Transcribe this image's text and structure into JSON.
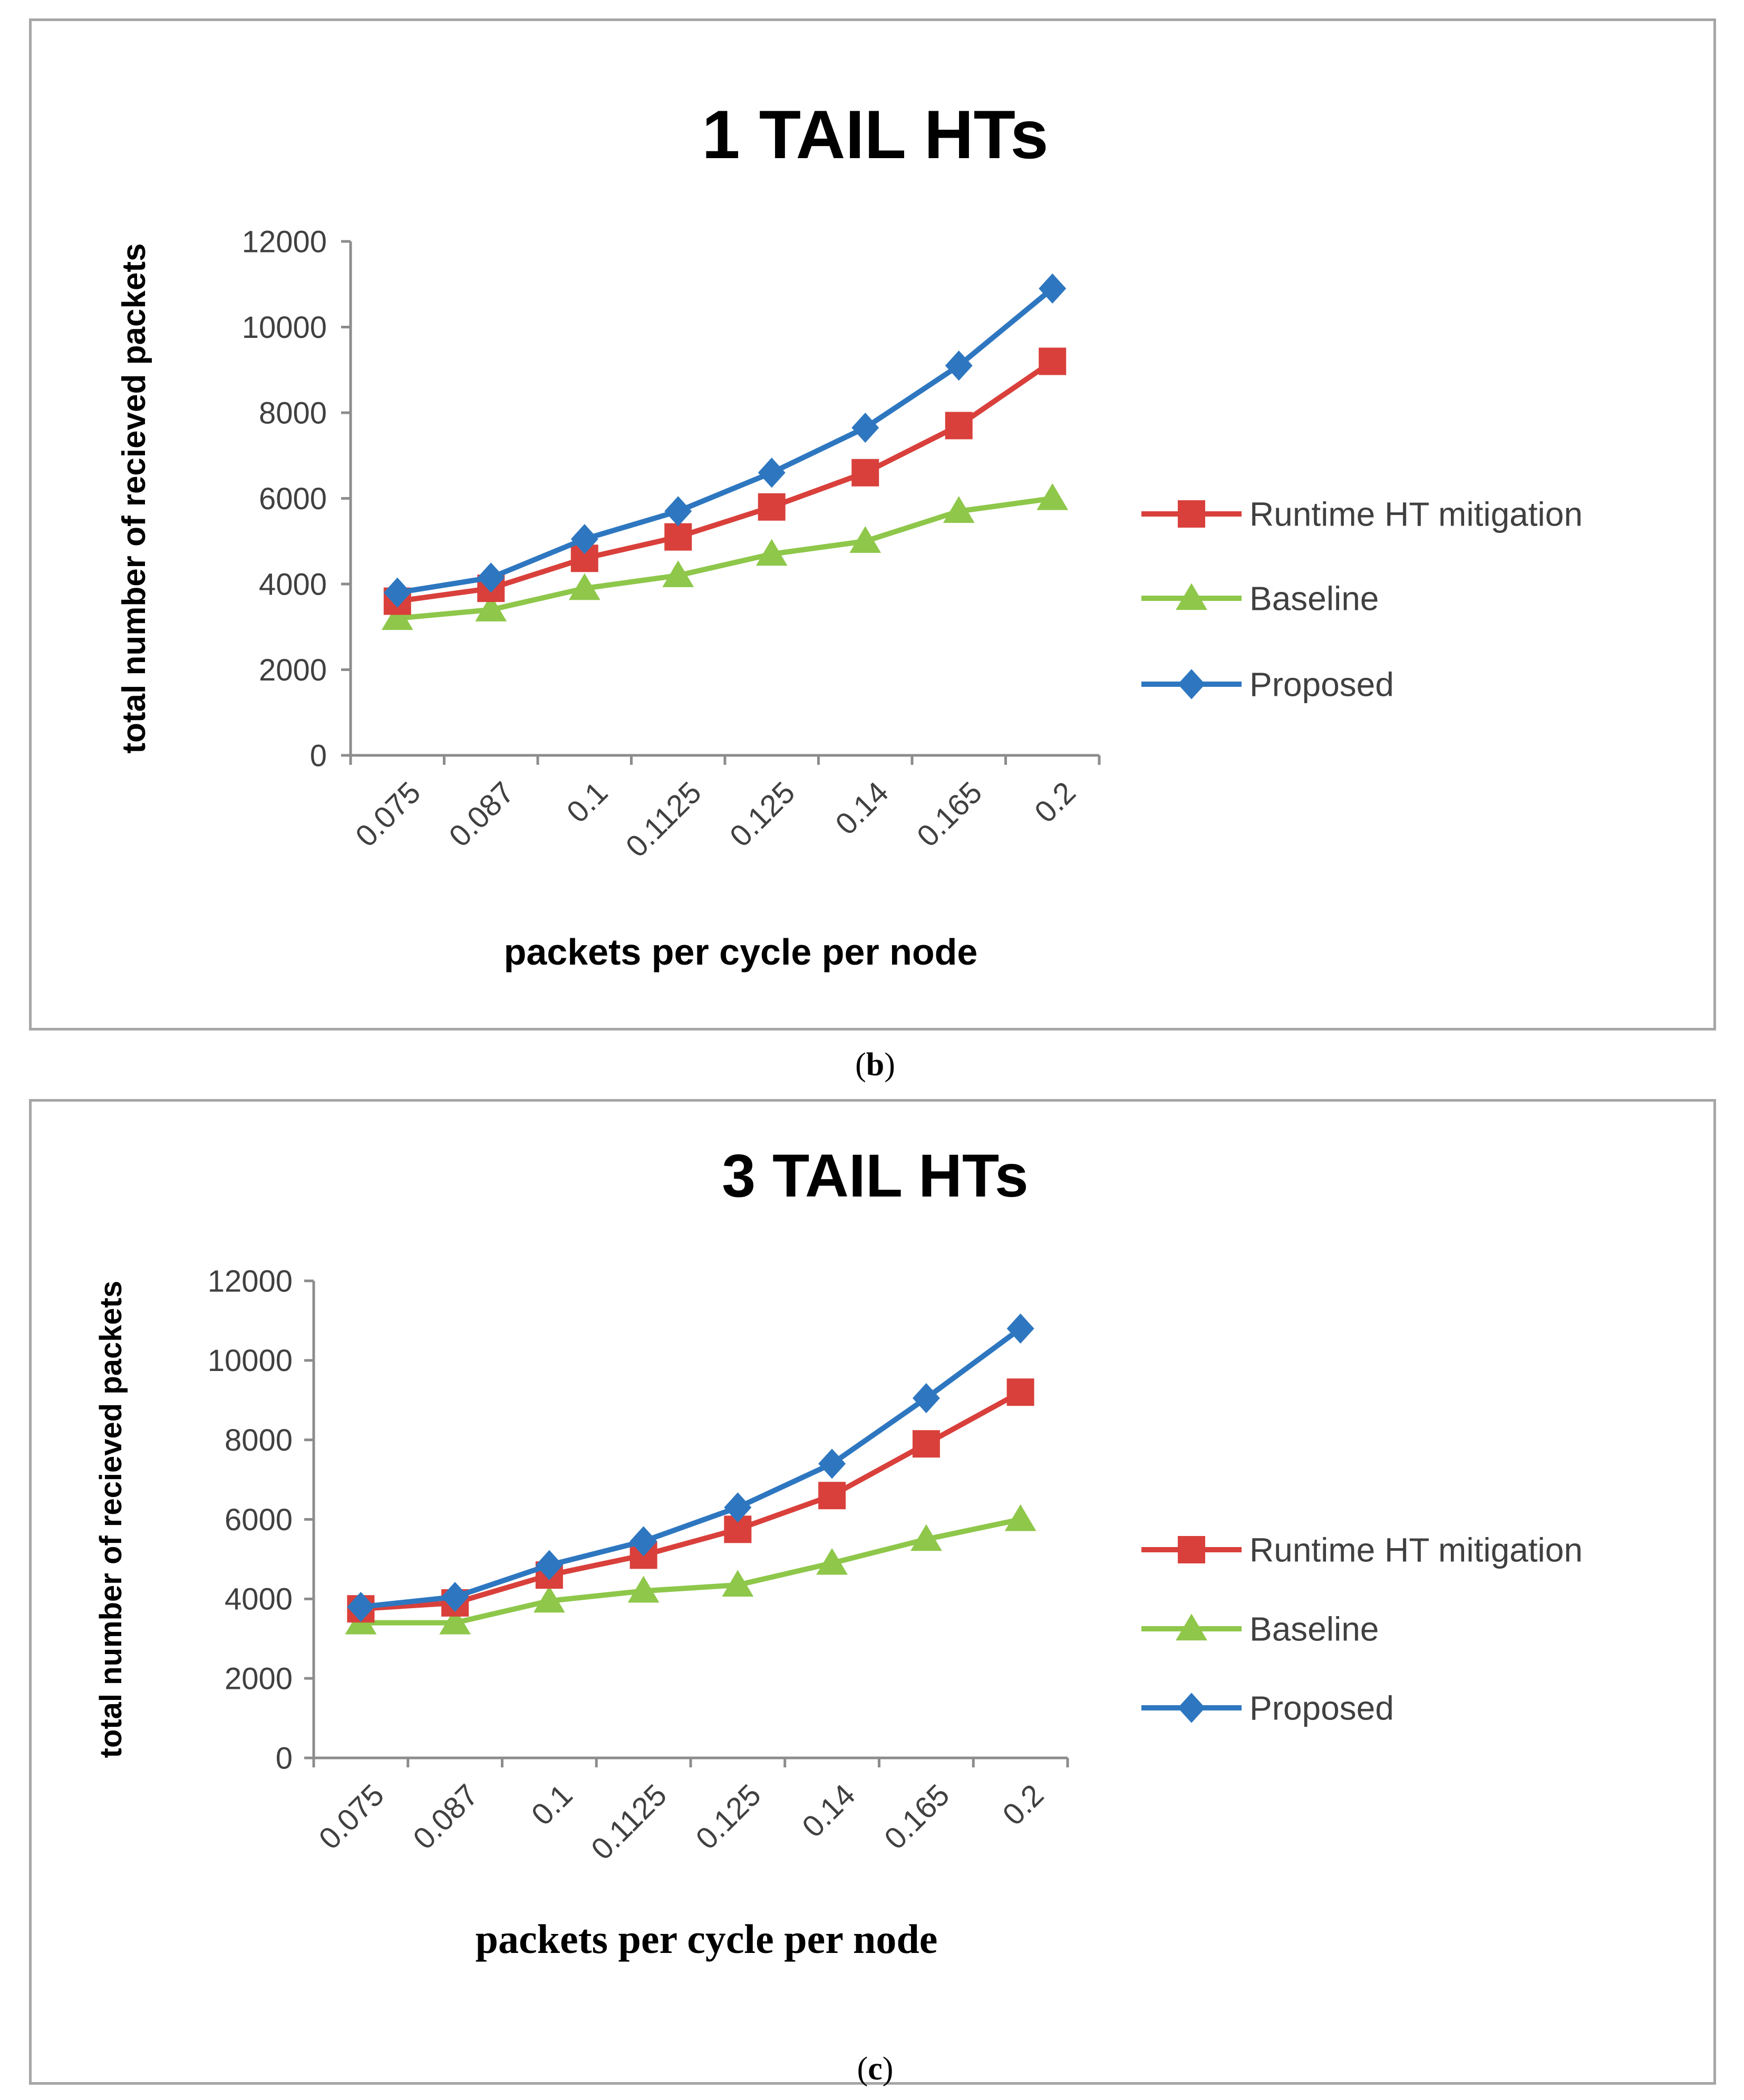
{
  "figures": [
    {
      "caption_letter": "b",
      "chart_data": {
        "type": "line",
        "title": "1 TAIL HTs",
        "xlabel": "packets per cycle per node",
        "ylabel": "total number of recieved packets",
        "categories": [
          "0.075",
          "0.087",
          "0.1",
          "0.1125",
          "0.125",
          "0.14",
          "0.165",
          "0.2"
        ],
        "ylim": [
          0,
          12000
        ],
        "yticks": [
          "0",
          "2000",
          "4000",
          "6000",
          "8000",
          "10000",
          "12000"
        ],
        "legend_position": "right",
        "grid": false,
        "series": [
          {
            "name": "Runtime HT mitigation",
            "marker": "square",
            "color": "#d9403b",
            "values": [
              3600,
              3900,
              4600,
              5100,
              5800,
              6600,
              7700,
              9200
            ]
          },
          {
            "name": "Baseline",
            "marker": "triangle",
            "color": "#8ec74a",
            "values": [
              3200,
              3400,
              3900,
              4200,
              4700,
              5000,
              5700,
              6000
            ]
          },
          {
            "name": "Proposed",
            "marker": "diamond",
            "color": "#2e77c0",
            "values": [
              3800,
              4150,
              5050,
              5700,
              6600,
              7650,
              9100,
              10900
            ]
          }
        ]
      }
    },
    {
      "caption_letter": "c",
      "chart_data": {
        "type": "line",
        "title": "3 TAIL HTs",
        "xlabel": "packets per cycle per node",
        "ylabel": "total number of recieved packets",
        "categories": [
          "0.075",
          "0.087",
          "0.1",
          "0.1125",
          "0.125",
          "0.14",
          "0.165",
          "0.2"
        ],
        "ylim": [
          0,
          12000
        ],
        "yticks": [
          "0",
          "2000",
          "4000",
          "6000",
          "8000",
          "10000",
          "12000"
        ],
        "legend_position": "right",
        "grid": false,
        "series": [
          {
            "name": "Runtime HT mitigation",
            "marker": "square",
            "color": "#d9403b",
            "values": [
              3750,
              3900,
              4600,
              5100,
              5750,
              6600,
              7900,
              9200
            ]
          },
          {
            "name": "Baseline",
            "marker": "triangle",
            "color": "#8ec74a",
            "values": [
              3400,
              3400,
              3950,
              4200,
              4350,
              4900,
              5500,
              6000
            ]
          },
          {
            "name": "Proposed",
            "marker": "diamond",
            "color": "#2e77c0",
            "values": [
              3800,
              4050,
              4850,
              5450,
              6300,
              7400,
              9050,
              10800
            ]
          }
        ]
      }
    }
  ]
}
